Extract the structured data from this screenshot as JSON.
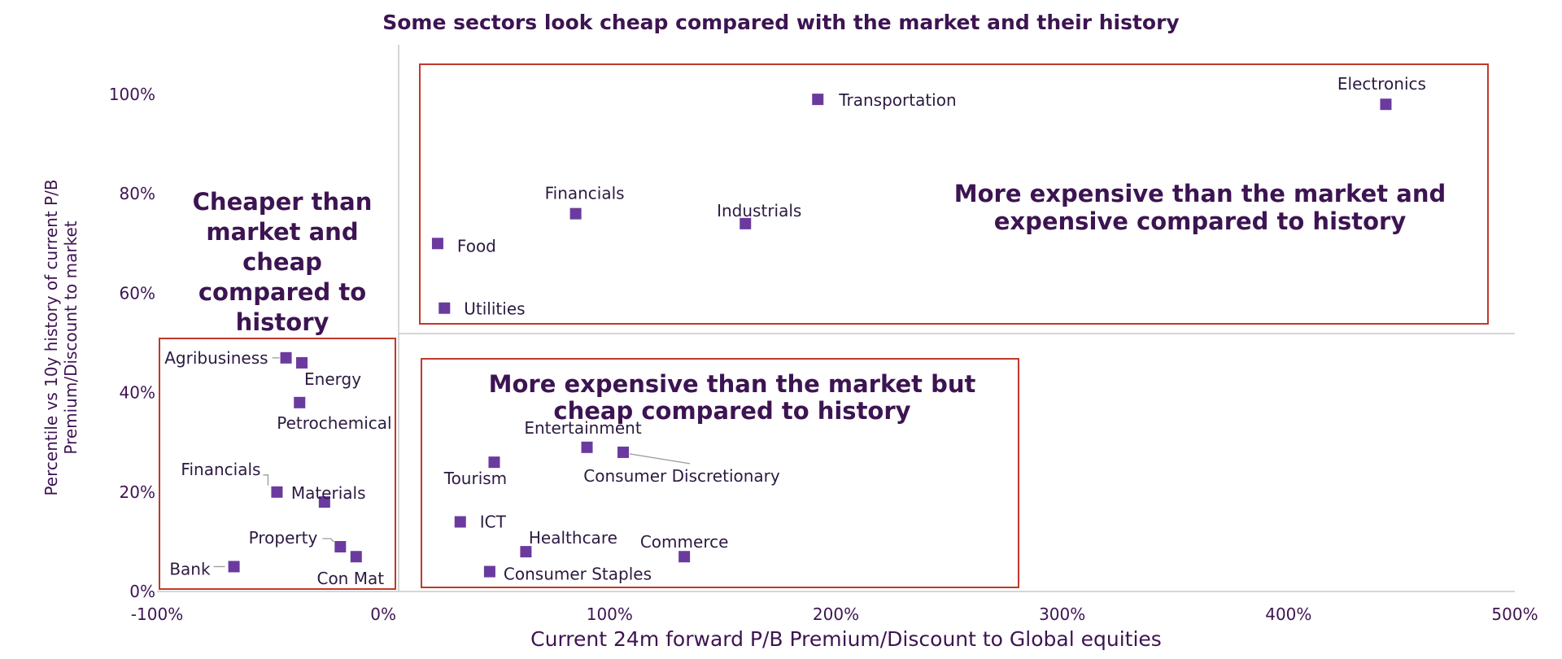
{
  "chart_data": {
    "type": "scatter",
    "title": "Some sectors look cheap compared with the market and their history",
    "xlabel": "Current 24m forward P/B Premium/Discount to Global equities",
    "ylabel_lines": [
      "Percentile vs 10y history of current P/B",
      "Premium/Discount to market"
    ],
    "xlim": [
      -100,
      500
    ],
    "ylim": [
      0,
      100
    ],
    "x_ticks": [
      "-100%",
      "0%",
      "100%",
      "200%",
      "300%",
      "400%",
      "500%"
    ],
    "y_ticks": [
      "0%",
      "20%",
      "40%",
      "60%",
      "80%",
      "100%"
    ],
    "marker_color": "#6b3a9e",
    "points": [
      {
        "label": "Electronics",
        "x": 443,
        "y": 98
      },
      {
        "label": "Transportation",
        "x": 192,
        "y": 99
      },
      {
        "label": "Financials",
        "x": 85,
        "y": 76
      },
      {
        "label": "Industrials",
        "x": 160,
        "y": 74
      },
      {
        "label": "Food",
        "x": 24,
        "y": 70
      },
      {
        "label": "Utilities",
        "x": 27,
        "y": 57
      },
      {
        "label": "Agribusiness",
        "x": -43,
        "y": 47
      },
      {
        "label": "Energy",
        "x": -36,
        "y": 46
      },
      {
        "label": "Petrochemical",
        "x": -37,
        "y": 38
      },
      {
        "label": "Financials",
        "x": -47,
        "y": 20
      },
      {
        "label": "Materials",
        "x": -26,
        "y": 18
      },
      {
        "label": "Property",
        "x": -19,
        "y": 9
      },
      {
        "label": "Con Mat",
        "x": -12,
        "y": 7
      },
      {
        "label": "Bank",
        "x": -66,
        "y": 5
      },
      {
        "label": "Entertainment",
        "x": 90,
        "y": 29
      },
      {
        "label": "Consumer Discretionary",
        "x": 106,
        "y": 28
      },
      {
        "label": "Tourism",
        "x": 49,
        "y": 26
      },
      {
        "label": "ICT",
        "x": 34,
        "y": 14
      },
      {
        "label": "Healthcare",
        "x": 63,
        "y": 8
      },
      {
        "label": "Commerce",
        "x": 133,
        "y": 7
      },
      {
        "label": "Consumer Staples",
        "x": 47,
        "y": 4
      }
    ],
    "zones": [
      {
        "name": "cheaper",
        "lines": [
          "Cheaper than",
          "market and",
          "cheap",
          "compared to",
          "history"
        ]
      },
      {
        "name": "expensive",
        "lines": [
          "More expensive than the market and",
          "expensive compared to history"
        ]
      },
      {
        "name": "mixed",
        "lines": [
          "More expensive than the market but",
          "cheap compared to history"
        ]
      }
    ],
    "box_color": "#c0392b"
  }
}
